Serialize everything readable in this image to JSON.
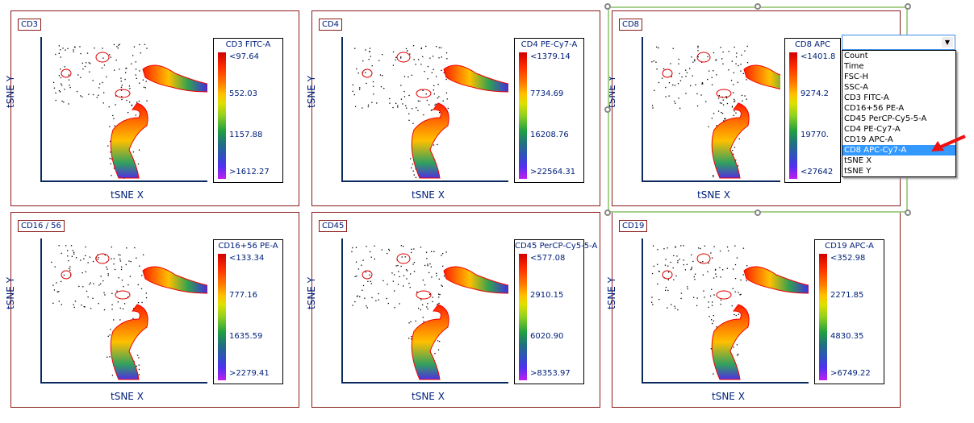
{
  "panels": [
    {
      "tag": "CD3",
      "legend_title": "CD3 FITC-A",
      "levels": [
        "<97.64",
        "552.03",
        "1157.88",
        ">1612.27"
      ],
      "xlabel": "tSNE X",
      "ylabel": "tSNE Y"
    },
    {
      "tag": "CD4",
      "legend_title": "CD4 PE-Cy7-A",
      "levels": [
        "<1379.14",
        "7734.69",
        "16208.76",
        ">22564.31"
      ],
      "xlabel": "tSNE X",
      "ylabel": "tSNE Y"
    },
    {
      "tag": "CD8",
      "legend_title": "CD8 APC",
      "levels": [
        "<1401.8",
        "9274.2",
        "19770.",
        "<27642"
      ],
      "xlabel": "tSNE X",
      "ylabel": "tSNE Y"
    },
    {
      "tag": "CD16 / 56",
      "legend_title": "CD16+56 PE-A",
      "levels": [
        "<133.34",
        "777.16",
        "1635.59",
        ">2279.41"
      ],
      "xlabel": "tSNE X",
      "ylabel": "tSNE Y"
    },
    {
      "tag": "CD45",
      "legend_title": "CD45 PerCP-Cy5-5-A",
      "levels": [
        "<577.08",
        "2910.15",
        "6020.90",
        ">8353.97"
      ],
      "xlabel": "tSNE X",
      "ylabel": "tSNE Y"
    },
    {
      "tag": "CD19",
      "legend_title": "CD19 APC-A",
      "levels": [
        "<352.98",
        "2271.85",
        "4830.35",
        ">6749.22"
      ],
      "xlabel": "tSNE X",
      "ylabel": "tSNE Y"
    }
  ],
  "dropdown": {
    "value": "",
    "options": [
      "Count",
      "Time",
      "FSC-H",
      "SSC-A",
      "CD3 FITC-A",
      "CD16+56 PE-A",
      "CD45 PerCP-Cy5-5-A",
      "CD4 PE-Cy7-A",
      "CD19 APC-A",
      "CD8 APC-Cy7-A",
      "tSNE X",
      "tSNE Y"
    ],
    "selected": "CD8 APC-Cy7-A"
  },
  "colors": {
    "selection": "#a8d08d",
    "border": "#8b1a1a",
    "highlight": "#3399ff",
    "arrow": "#ee1111"
  }
}
